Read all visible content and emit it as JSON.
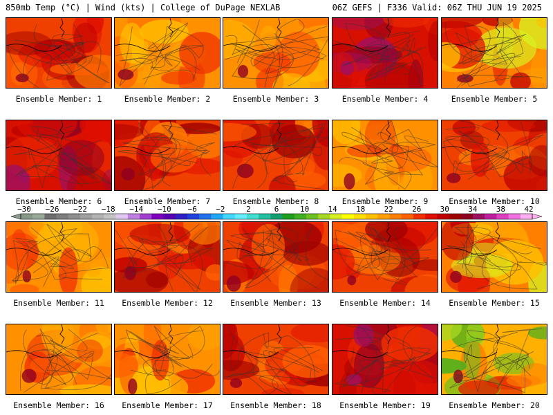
{
  "header": {
    "left": "850mb Temp (°C) | Wind (kts) | College of DuPage NEXLAB",
    "right": "06Z GEFS | F336 Valid: 06Z THU JUN 19 2025"
  },
  "colorbar": {
    "labels": [
      "−30",
      "−26",
      "−22",
      "−18",
      "−14",
      "−10",
      "−6",
      "−2",
      "2",
      "6",
      "10",
      "14",
      "18",
      "22",
      "26",
      "30",
      "34",
      "38",
      "42"
    ],
    "colors": [
      "#8a9a8a",
      "#9aaa9a",
      "#6e6e6e",
      "#7e7e7e",
      "#8e8e8e",
      "#a0a0a0",
      "#b2b2b2",
      "#c4c4c4",
      "#e0c8f0",
      "#c080e0",
      "#a040d0",
      "#8000c0",
      "#5a00b4",
      "#3020c8",
      "#2040e0",
      "#2070f0",
      "#20a8f8",
      "#40d8ff",
      "#60f0ff",
      "#40e0d0",
      "#20c0a0",
      "#10a070",
      "#1e9e1e",
      "#40b020",
      "#70c020",
      "#a8d820",
      "#d8f020",
      "#ffff00",
      "#ffe000",
      "#ffc000",
      "#ffa000",
      "#ff8000",
      "#ff6000",
      "#f03000",
      "#e01000",
      "#c00000",
      "#a00000",
      "#900020",
      "#a01060",
      "#c020a0",
      "#e040c0",
      "#f070e0",
      "#ffb0f0"
    ]
  },
  "members": [
    {
      "label": "Ensemble Member: 1",
      "theme": "hot"
    },
    {
      "label": "Ensemble Member: 2",
      "theme": "warm"
    },
    {
      "label": "Ensemble Member: 3",
      "theme": "warm"
    },
    {
      "label": "Ensemble Member: 4",
      "theme": "veryhot"
    },
    {
      "label": "Ensemble Member: 5",
      "theme": "mixed"
    },
    {
      "label": "Ensemble Member: 6",
      "theme": "veryhot"
    },
    {
      "label": "Ensemble Member: 7",
      "theme": "hot"
    },
    {
      "label": "Ensemble Member: 8",
      "theme": "hot"
    },
    {
      "label": "Ensemble Member: 9",
      "theme": "warm"
    },
    {
      "label": "Ensemble Member: 10",
      "theme": "hot"
    },
    {
      "label": "Ensemble Member: 11",
      "theme": "warm"
    },
    {
      "label": "Ensemble Member: 12",
      "theme": "hot"
    },
    {
      "label": "Ensemble Member: 13",
      "theme": "hot"
    },
    {
      "label": "Ensemble Member: 14",
      "theme": "hot"
    },
    {
      "label": "Ensemble Member: 15",
      "theme": "mixed"
    },
    {
      "label": "Ensemble Member: 16",
      "theme": "warm"
    },
    {
      "label": "Ensemble Member: 17",
      "theme": "warm"
    },
    {
      "label": "Ensemble Member: 18",
      "theme": "hot"
    },
    {
      "label": "Ensemble Member: 19",
      "theme": "veryhot"
    },
    {
      "label": "Ensemble Member: 20",
      "theme": "cool"
    }
  ]
}
